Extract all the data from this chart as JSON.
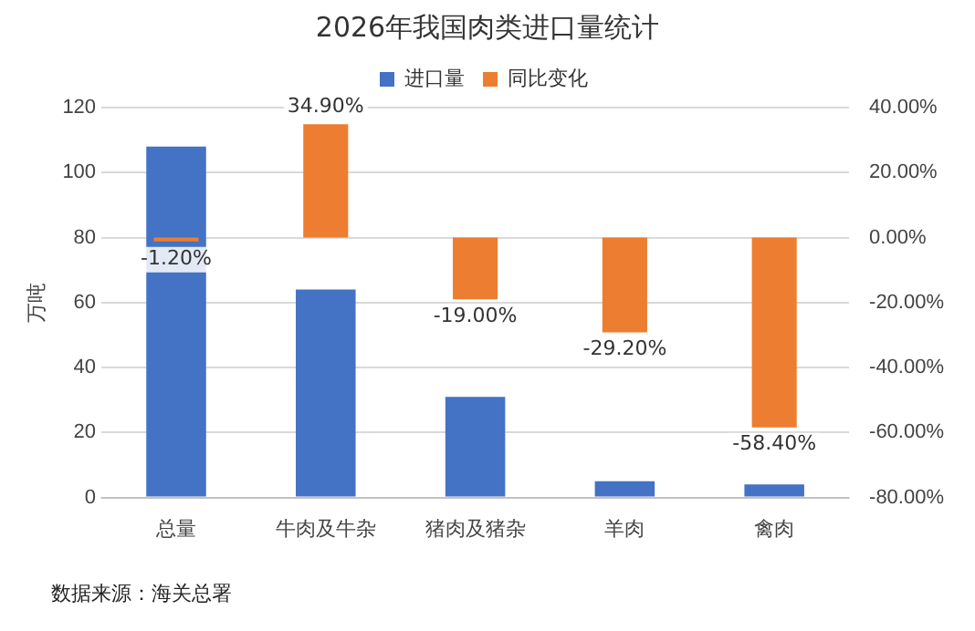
{
  "chart_data": {
    "type": "bar",
    "title": "2026年我国肉类进口量统计",
    "ylabel": "万吨",
    "categories": [
      "总量",
      "牛肉及牛杂",
      "猪肉及猪杂",
      "羊肉",
      "禽肉"
    ],
    "series": [
      {
        "name": "进口量",
        "color": "#4472c4",
        "values": [
          108,
          64,
          31,
          5,
          4
        ]
      },
      {
        "name": "同比变化",
        "color": "#ed7d31",
        "axis": "y2",
        "values": [
          -1.2,
          34.9,
          -19.0,
          -29.2,
          -58.4
        ],
        "value_labels": [
          "-1.20%",
          "34.90%",
          "-19.00%",
          "-29.20%",
          "-58.40%"
        ]
      }
    ],
    "ylim": [
      0,
      120
    ],
    "yticks": [
      0,
      20,
      40,
      60,
      80,
      100,
      120
    ],
    "y2lim": [
      -80,
      40
    ],
    "y2ticks": [
      {
        "value": -80,
        "label": "-80.00%"
      },
      {
        "value": -60,
        "label": "-60.00%"
      },
      {
        "value": -40,
        "label": "-40.00%"
      },
      {
        "value": -20,
        "label": "-20.00%"
      },
      {
        "value": 0,
        "label": "0.00%"
      },
      {
        "value": 20,
        "label": "20.00%"
      },
      {
        "value": 40,
        "label": "40.00%"
      }
    ],
    "grid": "y",
    "legend": "top",
    "annotations": [
      "数据来源：海关总署"
    ]
  }
}
